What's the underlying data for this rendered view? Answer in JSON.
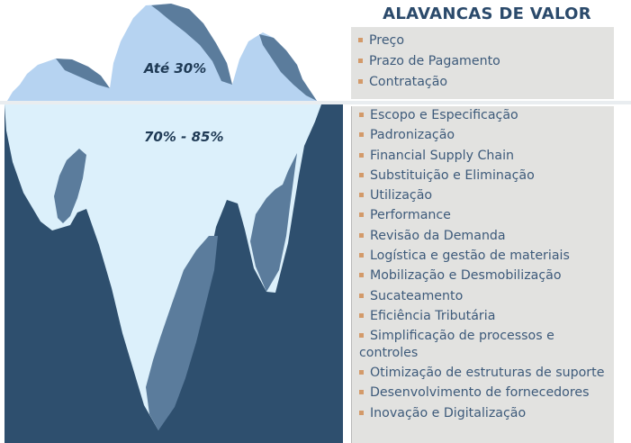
{
  "title": "ALAVANCAS DE VALOR",
  "iceberg": {
    "above_label": "Até 30%",
    "below_label": "70% - 85%"
  },
  "levers_above": [
    "Preço",
    "Prazo de Pagamento",
    "Contratação"
  ],
  "levers_below": [
    "Escopo e Especificação",
    "Padronização",
    "Financial Supply Chain",
    "Substituição e Eliminação",
    "Utilização",
    "Performance",
    "Revisão da Demanda",
    "Logística e gestão de materiais",
    "Mobilização e Desmobilização",
    "Sucateamento",
    "Eficiência Tributária",
    "Simplificação de processos e controles",
    "Otimização de estruturas de suporte",
    "Desenvolvimento de fornecedores",
    "Inovação e Digitalização"
  ],
  "colors": {
    "sea": "#2e4f6e",
    "ice_above": "#b6d3f1",
    "ice_below": "#dcf0fb",
    "ice_shadow": "#5b7c9c",
    "panel": "#e2e2e0",
    "bullet": "#d39a6a",
    "text": "#3d5a7a",
    "title": "#2b4a6b"
  }
}
